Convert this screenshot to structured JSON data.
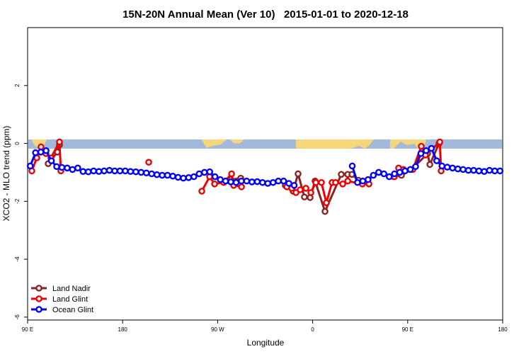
{
  "chart_data": {
    "type": "line",
    "title": "15N-20N Annual Mean (Ver 10)   2015-01-01 to 2020-12-18",
    "x_label": "Longitude",
    "y_label": "XCO2 - MLO trend (ppm)",
    "xlim": [
      90,
      540
    ],
    "ylim": [
      -6.1,
      4.0
    ],
    "xticks": [
      {
        "value": 90,
        "label": "90 E"
      },
      180,
      {
        "value": 270,
        "label": "90 W"
      },
      {
        "value": 360,
        "label": "0"
      },
      {
        "value": 450,
        "label": "90 E"
      },
      {
        "value": 540,
        "label": "180"
      }
    ],
    "yticks": [
      -6,
      -4,
      -2,
      0,
      2
    ],
    "legend": "bottom-left",
    "series": [
      {
        "name": "Land Nadir",
        "color": "#8b2323",
        "x": [
          109.5,
          118.2,
          120.2,
          200,
          282.5,
          291.9,
          315,
          334.1,
          341.5,
          346.2,
          352.2,
          357.6,
          362.3,
          371.7,
          387.1,
          393.2,
          397.2,
          403.2,
          425,
          436.7,
          444.1,
          453.5,
          468.9,
          471.0,
          479.7
        ],
        "values": [
          -0.7,
          -0.3,
          -0.05,
          null,
          -1.25,
          -1.2,
          null,
          -1.45,
          -1.65,
          -1.05,
          -1.85,
          -1.87,
          -1.3,
          -2.35,
          -1.07,
          -1.07,
          -1.07,
          -1.27,
          null,
          -1.15,
          -1.1,
          -0.9,
          -0.35,
          -0.73,
          0
        ]
      },
      {
        "name": "Land Glint",
        "color": "#ee0000",
        "x": [
          94.0,
          98.7,
          102.7,
          107.4,
          112.1,
          120.2,
          121.5,
          160,
          204.7,
          230,
          255.0,
          262.4,
          267.1,
          275.8,
          283.2,
          285.2,
          292.6,
          315,
          335.5,
          340.2,
          344.2,
          348.2,
          353.6,
          358.3,
          363.0,
          368.3,
          373.0,
          378.4,
          381.7,
          388.5,
          393.2,
          407.2,
          413.3,
          425,
          437.4,
          441.4,
          446.1,
          454.9,
          462.9,
          466.9,
          480.4,
          481.7
        ],
        "values": [
          -0.95,
          -0.5,
          -0.12,
          -0.35,
          -0.5,
          0.05,
          -0.95,
          null,
          -0.65,
          null,
          -1.65,
          -1.15,
          -1.4,
          -1.35,
          -1.05,
          -1.45,
          -1.5,
          null,
          -1.5,
          -1.55,
          -1.7,
          -1.6,
          -1.55,
          -1.7,
          -1.35,
          -1.35,
          -2.05,
          -1.35,
          -1.35,
          -1.4,
          -1.3,
          -1.4,
          -1.4,
          null,
          -1.15,
          -0.85,
          -0.9,
          -0.9,
          -0.1,
          -0.4,
          0.05,
          -0.95
        ]
      },
      {
        "name": "Ocean Glint",
        "color": "#0000ff",
        "x": [
          92.5,
          97.5,
          102.5,
          107.5,
          112.5,
          117.5,
          122.5,
          127.5,
          132.5,
          137.5,
          142.5,
          147.5,
          152.5,
          157.5,
          162.5,
          167.5,
          172.5,
          177.5,
          182.5,
          187.5,
          192.5,
          197.5,
          202.5,
          207.5,
          212.5,
          217.5,
          222.5,
          227.5,
          232.5,
          237.5,
          242.5,
          247.5,
          252.5,
          257.5,
          262.5,
          267.5,
          272.5,
          277.5,
          282.5,
          287.5,
          292.5,
          297.5,
          302.5,
          307.5,
          312.5,
          317.5,
          322.5,
          327.5,
          332.5,
          337.5,
          342.5,
          347.5,
          352.5,
          357.5,
          362.5,
          367.5,
          372.5,
          377.5,
          382.5,
          387.5,
          392.5,
          397.5,
          402.5,
          407.5,
          412.5,
          417.5,
          422.5,
          427.5,
          432.5,
          437.5,
          442.5,
          447.5,
          452.5,
          457.5,
          462.5,
          467.5,
          472.5,
          477.5,
          482.5,
          487.5,
          492.5,
          497.5,
          502.5,
          507.5,
          512.5,
          517.5,
          522.5,
          527.5,
          532.5,
          537.5
        ],
        "values": [
          -0.78,
          -0.32,
          -0.3,
          -0.25,
          -0.6,
          -0.8,
          -0.83,
          -0.85,
          -0.9,
          -0.85,
          -0.97,
          -0.98,
          -0.95,
          -0.97,
          -0.95,
          -0.93,
          -0.95,
          -0.95,
          -0.95,
          -0.97,
          -0.98,
          -1.0,
          -1.02,
          -1.05,
          -1.08,
          -1.1,
          -1.1,
          -1.13,
          -1.17,
          -1.2,
          -1.18,
          -1.15,
          -1.05,
          -1.0,
          -0.98,
          -1.15,
          -1.25,
          -1.3,
          -1.33,
          -1.35,
          -1.3,
          -1.3,
          -1.33,
          -1.32,
          -1.35,
          -1.38,
          -1.35,
          -1.3,
          -1.3,
          -1.38,
          -1.45,
          null,
          null,
          null,
          null,
          null,
          null,
          null,
          null,
          null,
          null,
          -0.78,
          -1.35,
          -1.3,
          -1.25,
          -1.1,
          -1.0,
          -1.05,
          -1.15,
          -1.05,
          -1.0,
          -0.95,
          -0.9,
          -0.8,
          -0.35,
          -0.25,
          -0.17,
          -0.6,
          -0.78,
          -0.82,
          -0.85,
          -0.88,
          -0.9,
          -0.93,
          -0.93,
          -0.95,
          -0.97,
          -0.93,
          -0.95,
          -0.95
        ]
      }
    ]
  }
}
